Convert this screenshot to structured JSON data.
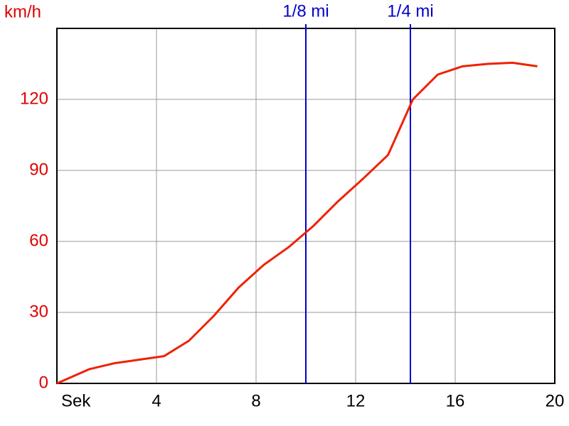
{
  "chart_data": {
    "type": "line",
    "y_label": "km/h",
    "x": [
      0,
      1.3,
      2.3,
      3.3,
      4.3,
      5.3,
      6.3,
      7.3,
      8.3,
      9.3,
      10.3,
      11.3,
      12.3,
      13.3,
      14.3,
      15.3,
      16.3,
      17.3,
      18.3,
      19.3
    ],
    "values": [
      0,
      6,
      8.5,
      10,
      11.5,
      18,
      28.5,
      40.5,
      50,
      57.5,
      66.5,
      77,
      86.5,
      96.5,
      120,
      130.5,
      134,
      135,
      135.5,
      134
    ],
    "color": "#ee2200",
    "xlim": [
      0,
      20
    ],
    "xticks": [
      {
        "value": 0,
        "label": "Sek"
      },
      4,
      8,
      12,
      16,
      20
    ],
    "ylim": [
      0,
      150
    ],
    "yticks": [
      0,
      30,
      60,
      90,
      120
    ],
    "grid": true,
    "markers": [
      {
        "x": 10,
        "label": "1/8 mi"
      },
      {
        "x": 14.2,
        "label": "1/4 mi"
      }
    ],
    "marker_color": "#0000cc"
  }
}
